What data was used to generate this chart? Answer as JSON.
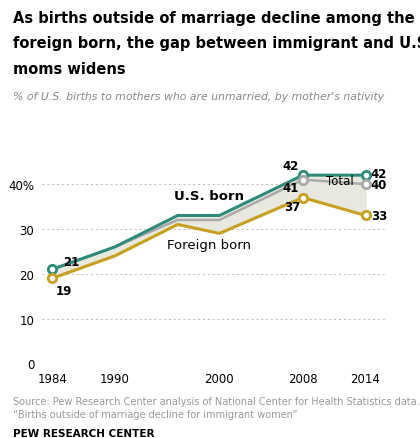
{
  "title_line1": "As births outside of marriage decline among the",
  "title_line2": "foreign born, the gap between immigrant and U.S.-born",
  "title_line3": "moms widens",
  "subtitle": "% of U.S. births to mothers who are unmarried, by mother's nativity",
  "years": [
    1984,
    1990,
    1996,
    2000,
    2008,
    2014
  ],
  "us_born": [
    21,
    26,
    33,
    33,
    42,
    42
  ],
  "foreign_born": [
    19,
    24,
    31,
    29,
    37,
    33
  ],
  "total": [
    21,
    26,
    32,
    32,
    41,
    40
  ],
  "us_born_color": "#2e8b7a",
  "foreign_born_color": "#c8a020",
  "total_color": "#aaaaaa",
  "fill_color": "#e8e8df",
  "background_color": "#ffffff",
  "source_line1": "Source: Pew Research Center analysis of National Center for Health Statistics data.",
  "source_line2": "“Births outside of marriage decline for immigrant women”",
  "brand_text": "PEW RESEARCH CENTER",
  "yticks": [
    0,
    10,
    20,
    30,
    40
  ],
  "ylim": [
    0,
    48
  ],
  "xlim": [
    1983,
    2016
  ],
  "xticks": [
    1984,
    1990,
    2000,
    2008,
    2014
  ]
}
